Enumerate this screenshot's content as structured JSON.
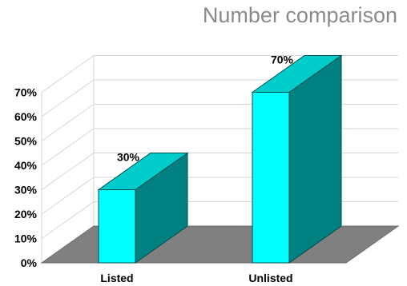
{
  "chart_data": {
    "type": "bar",
    "title": "Number comparison",
    "categories": [
      "Listed",
      "Unlisted"
    ],
    "values": [
      30,
      70
    ],
    "data_labels": [
      "30%",
      "70%"
    ],
    "ylim": [
      0,
      70
    ],
    "y_ticks": [
      "0%",
      "10%",
      "20%",
      "30%",
      "40%",
      "50%",
      "60%",
      "70%"
    ],
    "xlabel": "",
    "ylabel": "",
    "grid": true,
    "three_d": true,
    "colors": {
      "bar_front": "#00ffff",
      "bar_side": "#008080",
      "bar_top": "#00cccc",
      "floor": "#808080",
      "grid": "#d6d6d6"
    }
  }
}
